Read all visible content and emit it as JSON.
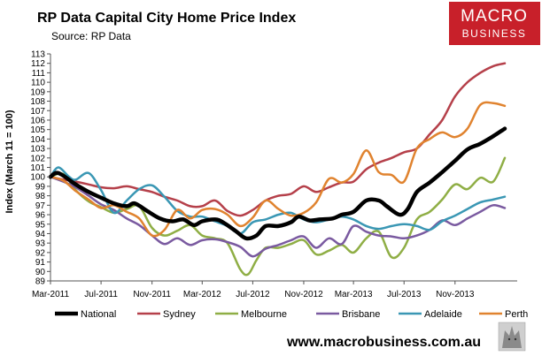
{
  "title": "RP Data Capital City Home Price Index",
  "subtitle": "Source: RP Data",
  "logo": {
    "line1": "MACRO",
    "line2": "BUSINESS",
    "color": "#c8202a"
  },
  "footer": {
    "url": "www.macrobusiness.com.au"
  },
  "chart_data": {
    "type": "line",
    "ylabel": "Index (March 11 = 100)",
    "xlabel": "",
    "ylim": [
      89,
      113
    ],
    "yticks": [
      89,
      90,
      91,
      92,
      93,
      94,
      95,
      96,
      97,
      98,
      99,
      100,
      101,
      102,
      103,
      104,
      105,
      106,
      107,
      108,
      109,
      110,
      111,
      112,
      113
    ],
    "xlim": [
      "2011-03-01",
      "2014-03-31"
    ],
    "xtick_labels": [
      "Mar-2011",
      "Jul-2011",
      "Nov-2011",
      "Mar-2012",
      "Jul-2012",
      "Nov-2012",
      "Mar-2013",
      "Jul-2013",
      "Nov-2013"
    ],
    "legend_position": "bottom",
    "grid": false,
    "series": [
      {
        "name": "National",
        "color": "#000000",
        "points": [
          [
            "2011-03-01",
            100
          ],
          [
            "2011-03-20",
            100.4
          ],
          [
            "2011-05-01",
            99.2
          ],
          [
            "2011-06-01",
            98.4
          ],
          [
            "2011-07-01",
            97.8
          ],
          [
            "2011-08-01",
            97.2
          ],
          [
            "2011-09-01",
            96.9
          ],
          [
            "2011-09-20",
            97.2
          ],
          [
            "2011-10-20",
            96.4
          ],
          [
            "2011-11-20",
            95.6
          ],
          [
            "2011-12-20",
            95.3
          ],
          [
            "2012-01-15",
            95.5
          ],
          [
            "2012-02-10",
            94.9
          ],
          [
            "2012-03-01",
            95.3
          ],
          [
            "2012-04-01",
            95.5
          ],
          [
            "2012-04-20",
            95.2
          ],
          [
            "2012-05-20",
            94.3
          ],
          [
            "2012-06-15",
            93.5
          ],
          [
            "2012-07-10",
            93.8
          ],
          [
            "2012-08-01",
            94.8
          ],
          [
            "2012-09-01",
            94.8
          ],
          [
            "2012-10-01",
            95.2
          ],
          [
            "2012-10-20",
            95.8
          ],
          [
            "2012-11-15",
            95.4
          ],
          [
            "2012-12-10",
            95.5
          ],
          [
            "2013-01-10",
            95.6
          ],
          [
            "2013-02-01",
            96.0
          ],
          [
            "2013-03-01",
            96.3
          ],
          [
            "2013-04-01",
            97.5
          ],
          [
            "2013-05-01",
            97.5
          ],
          [
            "2013-05-20",
            96.9
          ],
          [
            "2013-06-20",
            96.0
          ],
          [
            "2013-07-10",
            96.6
          ],
          [
            "2013-08-01",
            98.4
          ],
          [
            "2013-09-01",
            99.4
          ],
          [
            "2013-10-01",
            100.5
          ],
          [
            "2013-11-01",
            101.7
          ],
          [
            "2013-12-01",
            102.9
          ],
          [
            "2014-01-01",
            103.5
          ],
          [
            "2014-02-01",
            104.3
          ],
          [
            "2014-03-01",
            105.1
          ]
        ]
      },
      {
        "name": "Sydney",
        "color": "#b5404a",
        "points": [
          [
            "2011-03-01",
            100
          ],
          [
            "2011-04-01",
            99.7
          ],
          [
            "2011-05-01",
            99.5
          ],
          [
            "2011-06-01",
            99.2
          ],
          [
            "2011-07-01",
            98.9
          ],
          [
            "2011-08-01",
            98.8
          ],
          [
            "2011-09-01",
            99.0
          ],
          [
            "2011-10-01",
            98.7
          ],
          [
            "2011-11-01",
            98.4
          ],
          [
            "2011-12-01",
            97.9
          ],
          [
            "2012-01-01",
            97.5
          ],
          [
            "2012-02-01",
            96.9
          ],
          [
            "2012-03-01",
            96.9
          ],
          [
            "2012-04-01",
            97.5
          ],
          [
            "2012-05-01",
            96.4
          ],
          [
            "2012-06-01",
            95.9
          ],
          [
            "2012-07-01",
            96.5
          ],
          [
            "2012-08-01",
            97.5
          ],
          [
            "2012-09-01",
            98.0
          ],
          [
            "2012-10-01",
            98.2
          ],
          [
            "2012-11-01",
            99.0
          ],
          [
            "2012-12-01",
            98.4
          ],
          [
            "2013-01-01",
            98.9
          ],
          [
            "2013-02-01",
            99.4
          ],
          [
            "2013-03-01",
            99.5
          ],
          [
            "2013-04-01",
            100.8
          ],
          [
            "2013-05-01",
            101.5
          ],
          [
            "2013-06-01",
            102.0
          ],
          [
            "2013-07-01",
            102.6
          ],
          [
            "2013-08-01",
            103.0
          ],
          [
            "2013-09-01",
            104.5
          ],
          [
            "2013-10-01",
            106.0
          ],
          [
            "2013-11-01",
            108.5
          ],
          [
            "2013-12-01",
            110.0
          ],
          [
            "2014-01-01",
            111.0
          ],
          [
            "2014-02-01",
            111.7
          ],
          [
            "2014-03-01",
            112.0
          ]
        ]
      },
      {
        "name": "Melbourne",
        "color": "#8fae45",
        "points": [
          [
            "2011-03-01",
            100
          ],
          [
            "2011-04-01",
            100.3
          ],
          [
            "2011-05-01",
            98.6
          ],
          [
            "2011-06-01",
            97.4
          ],
          [
            "2011-07-01",
            96.8
          ],
          [
            "2011-08-01",
            96.2
          ],
          [
            "2011-09-01",
            96.6
          ],
          [
            "2011-10-01",
            96.9
          ],
          [
            "2011-11-01",
            94.6
          ],
          [
            "2011-12-01",
            93.8
          ],
          [
            "2012-01-01",
            94.3
          ],
          [
            "2012-02-01",
            94.9
          ],
          [
            "2012-03-01",
            93.8
          ],
          [
            "2012-04-01",
            93.5
          ],
          [
            "2012-05-01",
            93.0
          ],
          [
            "2012-06-01",
            90.2
          ],
          [
            "2012-06-20",
            89.7
          ],
          [
            "2012-07-10",
            91.2
          ],
          [
            "2012-08-01",
            92.5
          ],
          [
            "2012-09-01",
            92.5
          ],
          [
            "2012-10-01",
            92.9
          ],
          [
            "2012-11-01",
            93.3
          ],
          [
            "2012-12-01",
            91.8
          ],
          [
            "2013-01-01",
            92.2
          ],
          [
            "2013-02-01",
            92.8
          ],
          [
            "2013-03-01",
            92.0
          ],
          [
            "2013-04-01",
            93.5
          ],
          [
            "2013-05-01",
            94.2
          ],
          [
            "2013-06-01",
            91.5
          ],
          [
            "2013-07-01",
            92.5
          ],
          [
            "2013-08-01",
            95.5
          ],
          [
            "2013-09-01",
            96.3
          ],
          [
            "2013-10-01",
            97.6
          ],
          [
            "2013-11-01",
            99.2
          ],
          [
            "2013-12-01",
            98.7
          ],
          [
            "2014-01-01",
            99.9
          ],
          [
            "2014-02-01",
            99.5
          ],
          [
            "2014-03-01",
            102.0
          ]
        ]
      },
      {
        "name": "Brisbane",
        "color": "#7a5aa0",
        "points": [
          [
            "2011-03-01",
            100
          ],
          [
            "2011-04-01",
            99.5
          ],
          [
            "2011-05-01",
            98.9
          ],
          [
            "2011-06-01",
            98.0
          ],
          [
            "2011-07-01",
            97.1
          ],
          [
            "2011-08-01",
            96.5
          ],
          [
            "2011-09-01",
            95.6
          ],
          [
            "2011-10-01",
            94.9
          ],
          [
            "2011-11-01",
            93.8
          ],
          [
            "2011-12-01",
            92.9
          ],
          [
            "2012-01-01",
            93.5
          ],
          [
            "2012-02-01",
            92.8
          ],
          [
            "2012-03-01",
            93.3
          ],
          [
            "2012-04-01",
            93.4
          ],
          [
            "2012-05-01",
            93.1
          ],
          [
            "2012-06-01",
            92.6
          ],
          [
            "2012-07-01",
            91.6
          ],
          [
            "2012-08-01",
            92.4
          ],
          [
            "2012-09-01",
            92.8
          ],
          [
            "2012-10-01",
            93.3
          ],
          [
            "2012-11-01",
            93.7
          ],
          [
            "2012-12-01",
            92.5
          ],
          [
            "2013-01-01",
            93.5
          ],
          [
            "2013-02-01",
            92.9
          ],
          [
            "2013-03-01",
            94.8
          ],
          [
            "2013-04-01",
            94.2
          ],
          [
            "2013-05-01",
            93.8
          ],
          [
            "2013-06-01",
            93.7
          ],
          [
            "2013-07-01",
            93.5
          ],
          [
            "2013-08-01",
            93.8
          ],
          [
            "2013-09-01",
            94.4
          ],
          [
            "2013-10-01",
            95.4
          ],
          [
            "2013-11-01",
            94.9
          ],
          [
            "2013-12-01",
            95.6
          ],
          [
            "2014-01-01",
            96.3
          ],
          [
            "2014-02-01",
            97.0
          ],
          [
            "2014-03-01",
            96.7
          ]
        ]
      },
      {
        "name": "Adelaide",
        "color": "#3a97b4",
        "points": [
          [
            "2011-03-01",
            100
          ],
          [
            "2011-03-20",
            101.0
          ],
          [
            "2011-04-15",
            100.0
          ],
          [
            "2011-05-01",
            99.7
          ],
          [
            "2011-06-01",
            100.4
          ],
          [
            "2011-07-01",
            98.6
          ],
          [
            "2011-08-01",
            96.2
          ],
          [
            "2011-09-01",
            97.5
          ],
          [
            "2011-10-01",
            98.7
          ],
          [
            "2011-11-01",
            99.1
          ],
          [
            "2011-12-01",
            97.9
          ],
          [
            "2012-01-01",
            96.4
          ],
          [
            "2012-02-01",
            95.8
          ],
          [
            "2012-03-01",
            95.8
          ],
          [
            "2012-04-01",
            95.3
          ],
          [
            "2012-05-01",
            94.8
          ],
          [
            "2012-06-01",
            94.0
          ],
          [
            "2012-07-01",
            95.2
          ],
          [
            "2012-08-01",
            95.5
          ],
          [
            "2012-09-01",
            96.0
          ],
          [
            "2012-10-01",
            96.2
          ],
          [
            "2012-11-01",
            95.5
          ],
          [
            "2012-12-01",
            95.2
          ],
          [
            "2013-01-01",
            95.5
          ],
          [
            "2013-02-01",
            95.8
          ],
          [
            "2013-03-01",
            95.5
          ],
          [
            "2013-04-01",
            94.8
          ],
          [
            "2013-05-01",
            94.5
          ],
          [
            "2013-06-01",
            94.8
          ],
          [
            "2013-07-01",
            95.0
          ],
          [
            "2013-08-01",
            94.8
          ],
          [
            "2013-09-01",
            94.4
          ],
          [
            "2013-10-01",
            95.3
          ],
          [
            "2013-11-01",
            95.9
          ],
          [
            "2013-12-01",
            96.6
          ],
          [
            "2014-01-01",
            97.3
          ],
          [
            "2014-02-01",
            97.6
          ],
          [
            "2014-03-01",
            97.9
          ]
        ]
      },
      {
        "name": "Perth",
        "color": "#e0832f",
        "points": [
          [
            "2011-03-01",
            100
          ],
          [
            "2011-04-01",
            99.6
          ],
          [
            "2011-05-01",
            98.5
          ],
          [
            "2011-06-01",
            97.6
          ],
          [
            "2011-07-01",
            96.7
          ],
          [
            "2011-08-01",
            97.0
          ],
          [
            "2011-09-01",
            96.3
          ],
          [
            "2011-10-01",
            95.6
          ],
          [
            "2011-11-01",
            93.8
          ],
          [
            "2011-12-01",
            94.4
          ],
          [
            "2012-01-01",
            96.5
          ],
          [
            "2012-02-01",
            95.6
          ],
          [
            "2012-03-01",
            96.5
          ],
          [
            "2012-04-01",
            96.6
          ],
          [
            "2012-05-01",
            96.0
          ],
          [
            "2012-06-01",
            94.8
          ],
          [
            "2012-07-01",
            95.7
          ],
          [
            "2012-08-01",
            97.5
          ],
          [
            "2012-09-01",
            96.6
          ],
          [
            "2012-10-01",
            95.9
          ],
          [
            "2012-11-01",
            96.2
          ],
          [
            "2012-12-01",
            97.3
          ],
          [
            "2013-01-01",
            99.8
          ],
          [
            "2013-02-01",
            99.4
          ],
          [
            "2013-03-01",
            100.3
          ],
          [
            "2013-04-01",
            102.8
          ],
          [
            "2013-05-01",
            100.5
          ],
          [
            "2013-06-01",
            100.2
          ],
          [
            "2013-07-01",
            99.5
          ],
          [
            "2013-08-01",
            103.0
          ],
          [
            "2013-09-01",
            104.0
          ],
          [
            "2013-10-01",
            104.7
          ],
          [
            "2013-11-01",
            104.2
          ],
          [
            "2013-12-01",
            105.1
          ],
          [
            "2014-01-01",
            107.6
          ],
          [
            "2014-02-01",
            107.8
          ],
          [
            "2014-03-01",
            107.5
          ]
        ]
      }
    ]
  }
}
